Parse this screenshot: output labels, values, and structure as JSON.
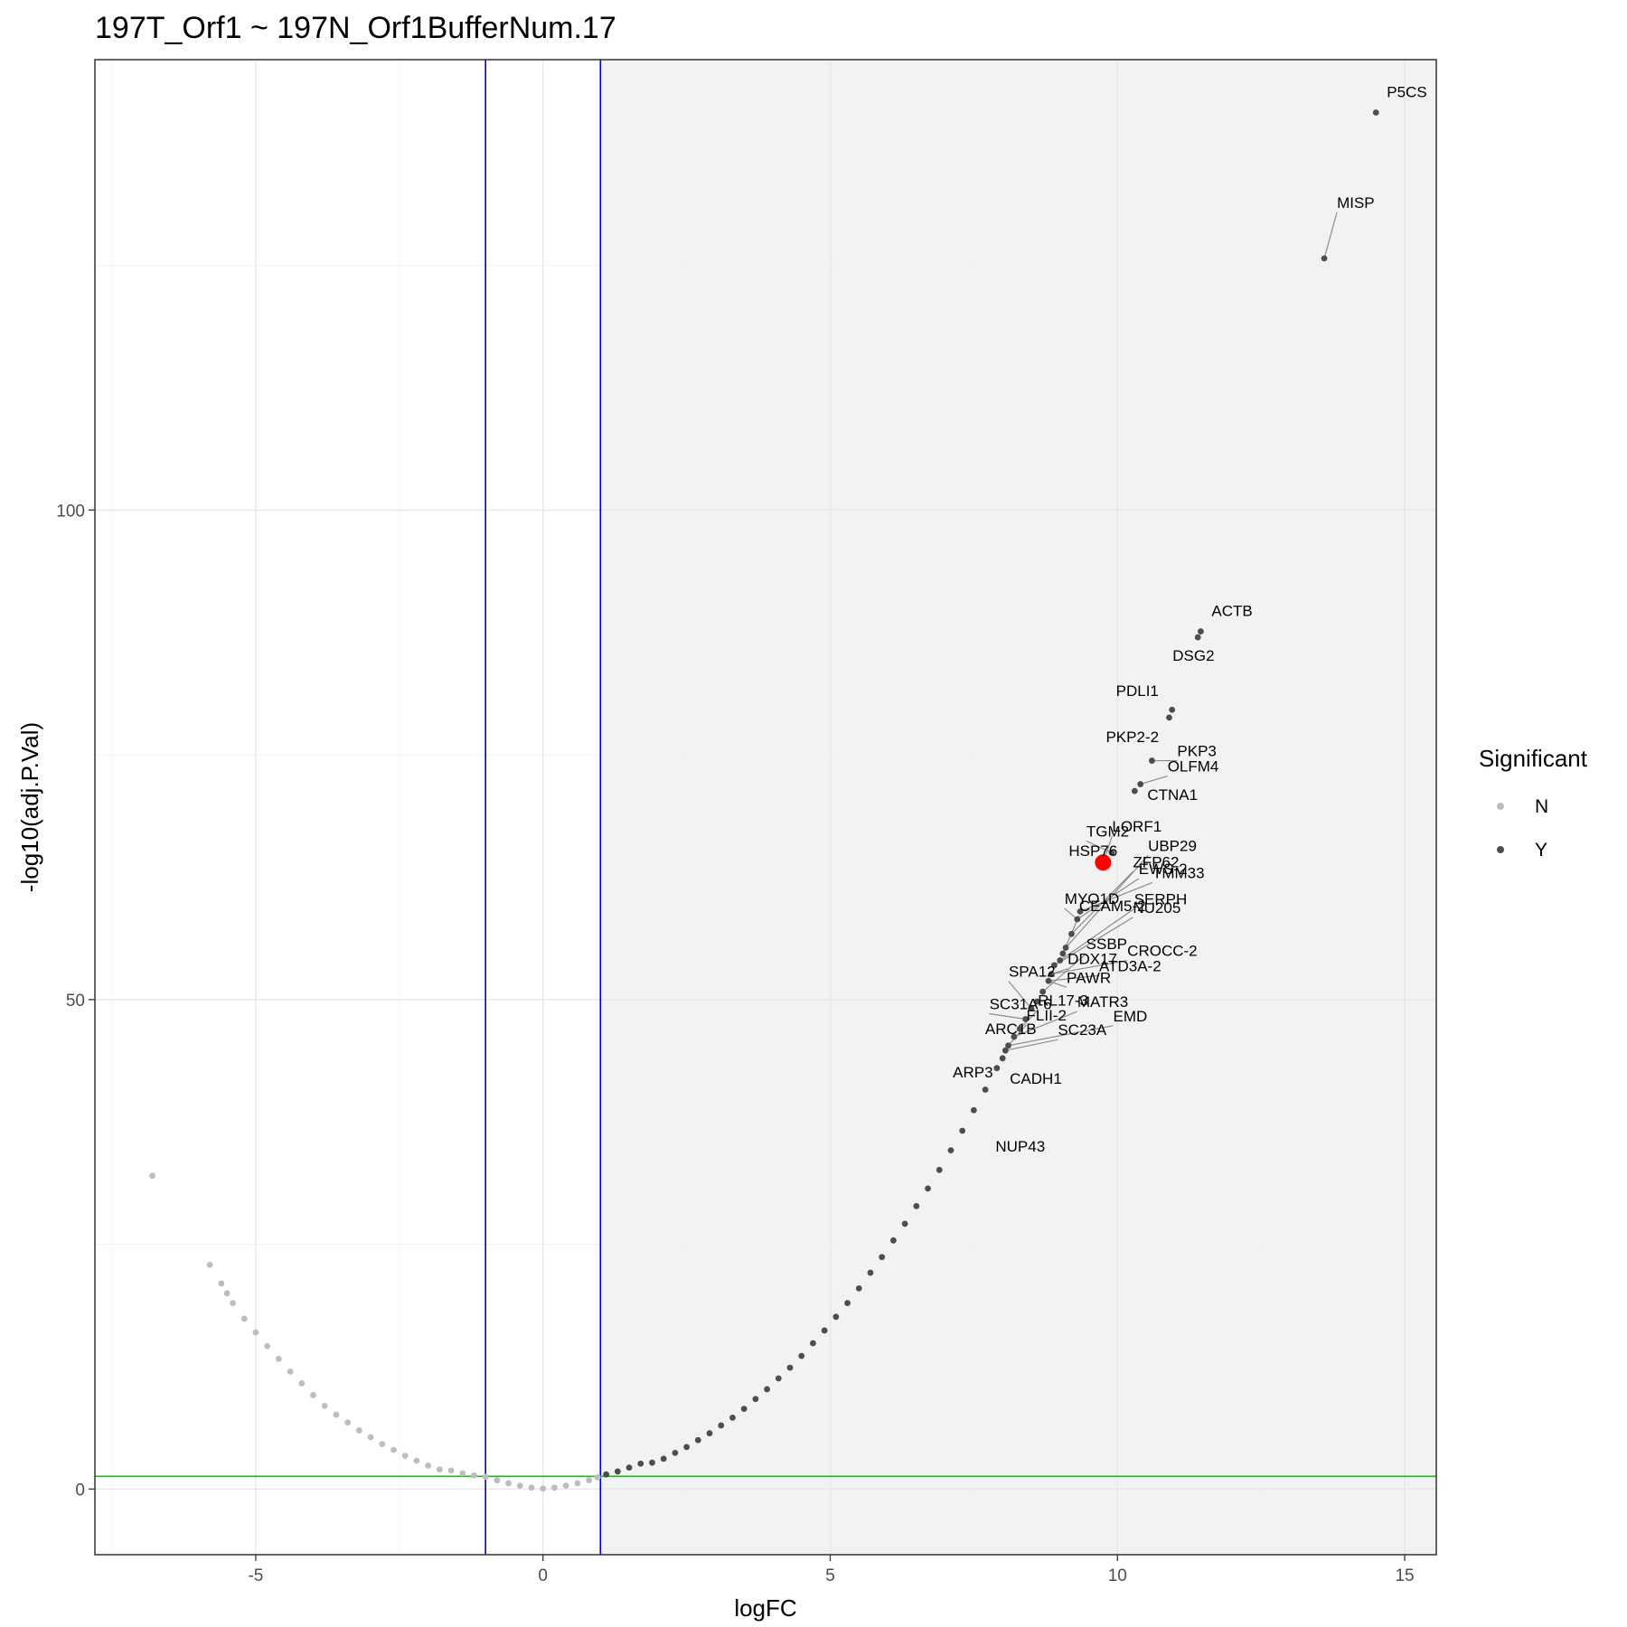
{
  "chart_data": {
    "type": "scatter",
    "title": "197T_Orf1 ~ 197N_Orf1BufferNum.17",
    "xlabel": "logFC",
    "ylabel": "-log10(adj.P.Val)",
    "xlim": [
      -7.8,
      15.55
    ],
    "ylim": [
      -6.7,
      146
    ],
    "x_ticks": [
      -5,
      0,
      5,
      10,
      15
    ],
    "y_ticks": [
      0,
      50,
      100
    ],
    "grid": true,
    "vlines": {
      "values": [
        -1,
        1
      ],
      "color": "#0000cc"
    },
    "hline": {
      "value": 1.3,
      "color": "#00cc00"
    },
    "shaded_region": {
      "x_from": 1,
      "color": "#f2f2f2"
    },
    "legend": {
      "title": "Significant",
      "position": "right",
      "entries": [
        {
          "label": "N",
          "color": "#bdbdbd"
        },
        {
          "label": "Y",
          "color": "#4d4d4d"
        }
      ]
    },
    "series": [
      {
        "name": "N",
        "color": "#bdbdbd",
        "points": [
          [
            -6.8,
            32
          ],
          [
            -5.8,
            22.9
          ],
          [
            -5.6,
            21
          ],
          [
            -5.5,
            20
          ],
          [
            -5.4,
            19
          ],
          [
            -5.2,
            17.4
          ],
          [
            -5.0,
            16
          ],
          [
            -4.8,
            14.6
          ],
          [
            -4.6,
            13.3
          ],
          [
            -4.4,
            12.0
          ],
          [
            -4.2,
            10.8
          ],
          [
            -4.0,
            9.6
          ],
          [
            -3.8,
            8.5
          ],
          [
            -3.6,
            7.6
          ],
          [
            -3.4,
            6.8
          ],
          [
            -3.2,
            6.0
          ],
          [
            -3.0,
            5.3
          ],
          [
            -2.8,
            4.6
          ],
          [
            -2.6,
            4.0
          ],
          [
            -2.4,
            3.4
          ],
          [
            -2.2,
            2.9
          ],
          [
            -2.0,
            2.4
          ],
          [
            -1.8,
            2.0
          ],
          [
            -1.6,
            1.9
          ],
          [
            -1.4,
            1.6
          ],
          [
            -1.2,
            1.4
          ],
          [
            -1.0,
            1.25
          ],
          [
            -0.8,
            0.9
          ],
          [
            -0.6,
            0.6
          ],
          [
            -0.4,
            0.35
          ],
          [
            -0.2,
            0.15
          ],
          [
            0.0,
            0.05
          ],
          [
            0.2,
            0.15
          ],
          [
            0.4,
            0.35
          ],
          [
            0.6,
            0.6
          ],
          [
            0.8,
            0.9
          ],
          [
            0.95,
            1.2
          ]
        ]
      },
      {
        "name": "Y",
        "color": "#4d4d4d",
        "points": [
          [
            1.1,
            1.5
          ],
          [
            1.3,
            1.8
          ],
          [
            1.5,
            2.2
          ],
          [
            1.7,
            2.6
          ],
          [
            1.9,
            2.7
          ],
          [
            2.1,
            3.1
          ],
          [
            2.3,
            3.7
          ],
          [
            2.5,
            4.3
          ],
          [
            2.7,
            5.0
          ],
          [
            2.9,
            5.7
          ],
          [
            3.1,
            6.5
          ],
          [
            3.3,
            7.3
          ],
          [
            3.5,
            8.2
          ],
          [
            3.7,
            9.2
          ],
          [
            3.9,
            10.2
          ],
          [
            4.1,
            11.3
          ],
          [
            4.3,
            12.4
          ],
          [
            4.5,
            13.6
          ],
          [
            4.7,
            14.9
          ],
          [
            4.9,
            16.2
          ],
          [
            5.1,
            17.6
          ],
          [
            5.3,
            19.0
          ],
          [
            5.5,
            20.5
          ],
          [
            5.7,
            22.1
          ],
          [
            5.9,
            23.7
          ],
          [
            6.1,
            25.4
          ],
          [
            6.3,
            27.1
          ],
          [
            6.5,
            28.9
          ],
          [
            6.7,
            30.7
          ],
          [
            6.9,
            32.6
          ],
          [
            7.1,
            34.6
          ],
          [
            7.3,
            36.6
          ],
          [
            7.5,
            38.7
          ],
          [
            7.7,
            40.8
          ],
          [
            7.9,
            43.0
          ],
          [
            8.0,
            44.0
          ],
          [
            8.05,
            44.8
          ],
          [
            8.1,
            45.3
          ],
          [
            8.2,
            46.2
          ],
          [
            8.3,
            47.0
          ],
          [
            8.4,
            48.0
          ],
          [
            8.5,
            49.1
          ],
          [
            8.6,
            49.8
          ],
          [
            8.7,
            50.8
          ],
          [
            8.8,
            51.9
          ],
          [
            8.85,
            52.6
          ],
          [
            8.9,
            53.5
          ],
          [
            9.0,
            54.0
          ],
          [
            9.05,
            54.7
          ],
          [
            9.1,
            55.3
          ],
          [
            9.2,
            56.7
          ],
          [
            9.3,
            58.2
          ],
          [
            9.35,
            59.0
          ],
          [
            9.75,
            64.0
          ],
          [
            9.9,
            65.0
          ],
          [
            10.3,
            71.3
          ],
          [
            10.4,
            72.0
          ],
          [
            10.6,
            74.4
          ],
          [
            10.9,
            78.8
          ],
          [
            10.95,
            79.6
          ],
          [
            11.4,
            87.0
          ],
          [
            11.45,
            87.6
          ],
          [
            13.6,
            125.7
          ],
          [
            14.5,
            140.6
          ]
        ]
      }
    ],
    "highlight": {
      "label": "LORF1",
      "x": 9.75,
      "y": 64.0,
      "color": "#ff0000"
    },
    "annotations": [
      {
        "text": "P5CS",
        "x": 14.5,
        "y": 140.6,
        "color": "#000000"
      },
      {
        "text": "MISP",
        "x": 13.6,
        "y": 125.7,
        "color": "#000000"
      },
      {
        "text": "ACTB",
        "x": 11.45,
        "y": 87.6,
        "color": "#000000"
      },
      {
        "text": "DSG2",
        "x": 11.4,
        "y": 87.0,
        "color": "#000000"
      },
      {
        "text": "PDLI1",
        "x": 10.95,
        "y": 79.6,
        "color": "#000000"
      },
      {
        "text": "PKP2-2",
        "x": 10.9,
        "y": 78.8,
        "color": "#000000"
      },
      {
        "text": "PKP3",
        "x": 10.6,
        "y": 74.4,
        "color": "#000000"
      },
      {
        "text": "OLFM4",
        "x": 10.4,
        "y": 72.0,
        "color": "#000000"
      },
      {
        "text": "CTNA1",
        "x": 10.3,
        "y": 71.3,
        "color": "#000000"
      },
      {
        "text": "TGM2",
        "x": 9.9,
        "y": 65.0,
        "color": "#000000"
      },
      {
        "text": "LORF1",
        "x": 9.75,
        "y": 64.0,
        "color": "#ff0000"
      },
      {
        "text": "HSP76",
        "x": 9.75,
        "y": 64.0,
        "color": "#000000"
      },
      {
        "text": "TMM33",
        "x": 9.35,
        "y": 59.0,
        "color": "#000000"
      },
      {
        "text": "EWS-2",
        "x": 9.3,
        "y": 58.2,
        "color": "#000000"
      },
      {
        "text": "ZFP62",
        "x": 9.2,
        "y": 56.7,
        "color": "#000000"
      },
      {
        "text": "UBP29",
        "x": 9.1,
        "y": 55.3,
        "color": "#000000"
      },
      {
        "text": "CEAM5-2",
        "x": 9.05,
        "y": 54.7,
        "color": "#000000"
      },
      {
        "text": "MYO1D",
        "x": 9.3,
        "y": 58.2,
        "color": "#000000"
      },
      {
        "text": "SERPH",
        "x": 9.0,
        "y": 54.0,
        "color": "#000000"
      },
      {
        "text": "NU205",
        "x": 8.9,
        "y": 53.5,
        "color": "#000000"
      },
      {
        "text": "DDX17",
        "x": 8.85,
        "y": 52.6,
        "color": "#000000"
      },
      {
        "text": "ATD3A-2",
        "x": 8.8,
        "y": 51.9,
        "color": "#000000"
      },
      {
        "text": "CROCC-2",
        "x": 8.85,
        "y": 52.6,
        "color": "#000000"
      },
      {
        "text": "PAWR",
        "x": 8.8,
        "y": 51.9,
        "color": "#000000"
      },
      {
        "text": "SPA12",
        "x": 8.5,
        "y": 49.1,
        "color": "#000000"
      },
      {
        "text": "SSBP",
        "x": 8.7,
        "y": 50.8,
        "color": "#000000"
      },
      {
        "text": "EMD",
        "x": 8.1,
        "y": 45.3,
        "color": "#000000"
      },
      {
        "text": "SC31A-6",
        "x": 8.4,
        "y": 48.0,
        "color": "#000000"
      },
      {
        "text": "RL17-3",
        "x": 8.3,
        "y": 47.0,
        "color": "#000000"
      },
      {
        "text": "MATR3",
        "x": 8.2,
        "y": 46.2,
        "color": "#000000"
      },
      {
        "text": "FLII-2",
        "x": 8.1,
        "y": 45.3,
        "color": "#000000"
      },
      {
        "text": "ARC1B",
        "x": 8.2,
        "y": 46.2,
        "color": "#000000"
      },
      {
        "text": "SC23A",
        "x": 8.05,
        "y": 44.8,
        "color": "#000000"
      },
      {
        "text": "ARP3",
        "x": 8.0,
        "y": 44.0,
        "color": "#000000"
      },
      {
        "text": "CADH1",
        "x": 8.0,
        "y": 44.0,
        "color": "#000000"
      },
      {
        "text": "NUP43",
        "x": 7.5,
        "y": 38.7,
        "color": "#000000"
      }
    ]
  }
}
